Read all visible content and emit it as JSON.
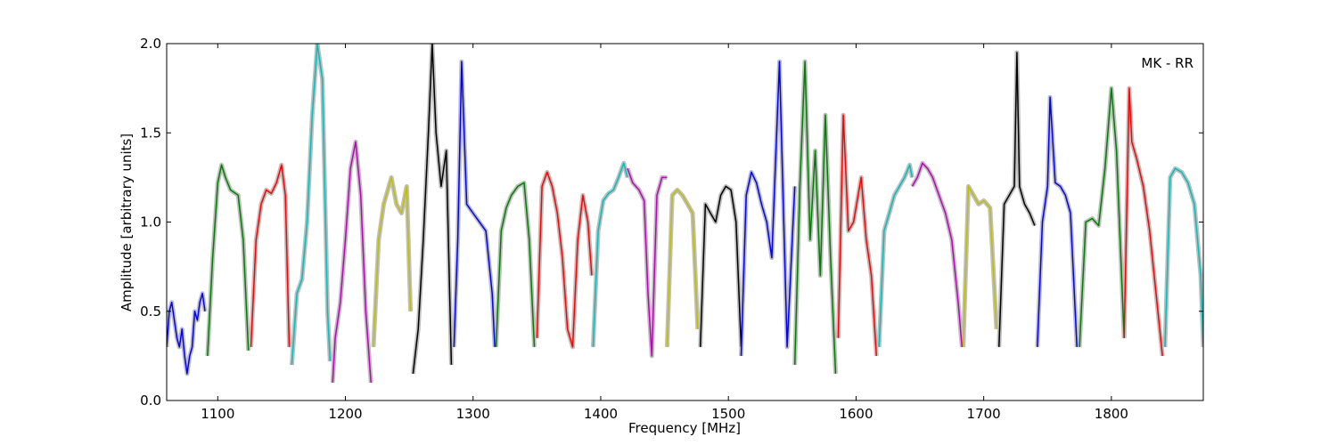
{
  "chart_data": {
    "type": "line",
    "title": "",
    "annotation": "MK - RR",
    "xlabel": "Frequency [MHz]",
    "ylabel": "Amplitude [arbitrary units]",
    "xlim": [
      1060,
      1872
    ],
    "ylim": [
      0.0,
      2.0
    ],
    "xticks": [
      1100,
      1200,
      1300,
      1400,
      1500,
      1600,
      1700,
      1800
    ],
    "yticks": [
      0.0,
      0.5,
      1.0,
      1.5,
      2.0
    ],
    "ytick_labels": [
      "0.0",
      "0.5",
      "1.0",
      "1.5",
      "2.0"
    ],
    "grid": false,
    "legend": "none",
    "reference_color": "#bfbfbf",
    "bands": [
      {
        "color": "#0000ff",
        "x": [
          1060,
          1062,
          1064,
          1066,
          1068,
          1070,
          1072,
          1074,
          1076,
          1078,
          1080,
          1082,
          1084,
          1086,
          1088,
          1090
        ],
        "y": [
          0.3,
          0.5,
          0.55,
          0.45,
          0.35,
          0.3,
          0.4,
          0.25,
          0.15,
          0.25,
          0.3,
          0.5,
          0.45,
          0.55,
          0.6,
          0.5
        ]
      },
      {
        "color": "#008000",
        "x": [
          1092,
          1096,
          1100,
          1103,
          1106,
          1110,
          1116,
          1120,
          1124
        ],
        "y": [
          0.25,
          0.8,
          1.22,
          1.32,
          1.25,
          1.18,
          1.15,
          0.9,
          0.28
        ]
      },
      {
        "color": "#ff0000",
        "x": [
          1126,
          1130,
          1134,
          1138,
          1142,
          1146,
          1150,
          1153,
          1156
        ],
        "y": [
          0.3,
          0.9,
          1.1,
          1.18,
          1.16,
          1.22,
          1.32,
          1.15,
          0.3
        ]
      },
      {
        "color": "#00bfbf",
        "x": [
          1158,
          1162,
          1166,
          1170,
          1174,
          1178,
          1182,
          1186,
          1188
        ],
        "y": [
          0.2,
          0.6,
          0.68,
          1.0,
          1.6,
          2.0,
          1.8,
          0.5,
          0.22
        ]
      },
      {
        "color": "#bf00bf",
        "x": [
          1190,
          1192,
          1196,
          1200,
          1204,
          1208,
          1212,
          1216,
          1220
        ],
        "y": [
          0.1,
          0.35,
          0.55,
          0.9,
          1.3,
          1.45,
          1.15,
          0.5,
          0.1
        ]
      },
      {
        "color": "#bfbf00",
        "x": [
          1222,
          1226,
          1230,
          1236,
          1240,
          1244,
          1248,
          1251
        ],
        "y": [
          0.3,
          0.9,
          1.1,
          1.25,
          1.1,
          1.05,
          1.2,
          0.5
        ]
      },
      {
        "color": "#000000",
        "x": [
          1253,
          1257,
          1261,
          1265,
          1268,
          1271,
          1275,
          1279,
          1283
        ],
        "y": [
          0.15,
          0.4,
          0.9,
          1.5,
          2.0,
          1.5,
          1.2,
          1.4,
          0.2
        ]
      },
      {
        "color": "#0000ff",
        "x": [
          1285,
          1288,
          1291,
          1295,
          1300,
          1305,
          1310,
          1315,
          1317
        ],
        "y": [
          0.3,
          0.9,
          1.9,
          1.1,
          1.05,
          1.0,
          0.95,
          0.6,
          0.3
        ]
      },
      {
        "color": "#008000",
        "x": [
          1318,
          1322,
          1326,
          1330,
          1335,
          1340,
          1344,
          1348
        ],
        "y": [
          0.3,
          0.95,
          1.08,
          1.15,
          1.2,
          1.22,
          0.9,
          0.3
        ]
      },
      {
        "color": "#ff0000",
        "x": [
          1350,
          1354,
          1358,
          1362,
          1366,
          1370,
          1374,
          1378,
          1382,
          1386,
          1390,
          1393
        ],
        "y": [
          0.35,
          1.2,
          1.28,
          1.2,
          1.05,
          0.8,
          0.4,
          0.3,
          0.9,
          1.15,
          1.0,
          0.7
        ]
      },
      {
        "color": "#00bfbf",
        "x": [
          1394,
          1398,
          1402,
          1406,
          1410,
          1414,
          1418,
          1421
        ],
        "y": [
          0.3,
          0.95,
          1.12,
          1.16,
          1.18,
          1.25,
          1.33,
          1.25
        ]
      },
      {
        "color": "#bf00bf",
        "x": [
          1421,
          1425,
          1430,
          1434,
          1437,
          1440,
          1444,
          1448,
          1452
        ],
        "y": [
          1.3,
          1.22,
          1.18,
          1.12,
          0.6,
          0.25,
          1.15,
          1.25,
          1.25
        ]
      },
      {
        "color": "#bfbf00",
        "x": [
          1452,
          1456,
          1460,
          1464,
          1468,
          1472,
          1476
        ],
        "y": [
          0.3,
          1.15,
          1.18,
          1.15,
          1.1,
          1.05,
          0.4
        ]
      },
      {
        "color": "#000000",
        "x": [
          1478,
          1482,
          1486,
          1490,
          1494,
          1498,
          1502,
          1506,
          1510
        ],
        "y": [
          0.3,
          1.1,
          1.05,
          1.0,
          1.15,
          1.2,
          1.18,
          1.0,
          0.3
        ]
      },
      {
        "color": "#0000ff",
        "x": [
          1510,
          1514,
          1518,
          1522,
          1526,
          1530,
          1534,
          1540,
          1546,
          1552
        ],
        "y": [
          0.25,
          1.15,
          1.28,
          1.22,
          1.1,
          1.0,
          0.8,
          1.9,
          0.3,
          1.2
        ]
      },
      {
        "color": "#008000",
        "x": [
          1552,
          1556,
          1560,
          1564,
          1568,
          1572,
          1576,
          1580,
          1584
        ],
        "y": [
          0.2,
          1.2,
          1.9,
          0.9,
          1.4,
          0.7,
          1.6,
          0.8,
          0.15
        ]
      },
      {
        "color": "#ff0000",
        "x": [
          1586,
          1590,
          1594,
          1598,
          1604,
          1608,
          1612,
          1616
        ],
        "y": [
          0.35,
          1.6,
          0.95,
          1.0,
          1.25,
          0.9,
          0.7,
          0.25
        ]
      },
      {
        "color": "#00bfbf",
        "x": [
          1618,
          1622,
          1626,
          1630,
          1634,
          1638,
          1642,
          1644
        ],
        "y": [
          0.3,
          0.95,
          1.05,
          1.15,
          1.2,
          1.25,
          1.32,
          1.25
        ]
      },
      {
        "color": "#bf00bf",
        "x": [
          1644,
          1648,
          1652,
          1656,
          1660,
          1665,
          1670,
          1675,
          1680,
          1683
        ],
        "y": [
          1.2,
          1.25,
          1.33,
          1.3,
          1.25,
          1.15,
          1.05,
          0.9,
          0.55,
          0.3
        ]
      },
      {
        "color": "#bfbf00",
        "x": [
          1684,
          1688,
          1692,
          1696,
          1700,
          1705,
          1710
        ],
        "y": [
          0.3,
          1.2,
          1.15,
          1.1,
          1.12,
          1.08,
          0.4
        ]
      },
      {
        "color": "#000000",
        "x": [
          1712,
          1716,
          1720,
          1724,
          1726,
          1728,
          1732,
          1736,
          1740
        ],
        "y": [
          0.3,
          1.1,
          1.15,
          1.2,
          1.95,
          1.2,
          1.1,
          1.05,
          0.98
        ]
      },
      {
        "color": "#0000ff",
        "x": [
          1742,
          1746,
          1750,
          1752,
          1756,
          1760,
          1764,
          1768,
          1773
        ],
        "y": [
          0.3,
          1.0,
          1.2,
          1.7,
          1.22,
          1.2,
          1.15,
          1.05,
          0.3
        ]
      },
      {
        "color": "#008000",
        "x": [
          1775,
          1780,
          1785,
          1790,
          1795,
          1800,
          1804,
          1810
        ],
        "y": [
          0.3,
          1.0,
          1.02,
          0.98,
          1.3,
          1.75,
          1.4,
          0.35
        ]
      },
      {
        "color": "#ff0000",
        "x": [
          1810,
          1814,
          1816,
          1820,
          1825,
          1830,
          1835,
          1840
        ],
        "y": [
          0.35,
          1.75,
          1.45,
          1.35,
          1.2,
          0.95,
          0.6,
          0.25
        ]
      },
      {
        "color": "#00bfbf",
        "x": [
          1842,
          1846,
          1850,
          1855,
          1860,
          1865,
          1870,
          1872
        ],
        "y": [
          0.3,
          1.25,
          1.3,
          1.28,
          1.22,
          1.1,
          0.7,
          0.3
        ]
      }
    ]
  }
}
